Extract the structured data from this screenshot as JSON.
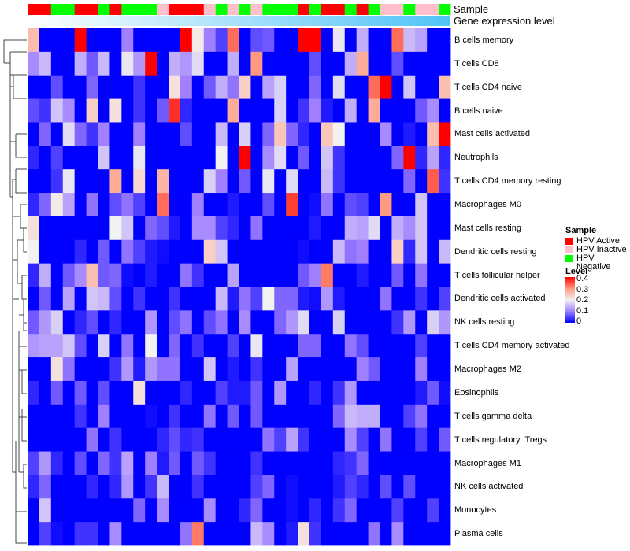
{
  "chart_data": {
    "type": "heatmap",
    "title": "",
    "annotation_labels": {
      "sample": "Sample",
      "gene_expression": "Gene expression level"
    },
    "sample_groups": [
      "HPV Active",
      "HPV Active",
      "HPV Negative",
      "HPV Negative",
      "HPV Active",
      "HPV Active",
      "HPV Negative",
      "HPV Active",
      "HPV Negative",
      "HPV Negative",
      "HPV Negative",
      "HPV Inactive",
      "HPV Active",
      "HPV Active",
      "HPV Active",
      "HPV Inactive",
      "HPV Negative",
      "HPV Inactive",
      "HPV Negative",
      "HPV Inactive",
      "HPV Negative",
      "HPV Negative",
      "HPV Negative",
      "HPV Active",
      "HPV Negative",
      "HPV Active",
      "HPV Active",
      "HPV Negative",
      "HPV Active",
      "HPV Negative",
      "HPV Inactive",
      "HPV Inactive",
      "HPV Negative",
      "HPV Inactive",
      "HPV Inactive",
      "HPV Negative"
    ],
    "rows": [
      "B cells memory",
      "T cells CD8",
      "T cells CD4 naive",
      "B cells naive",
      "Mast cells activated",
      "Neutrophils",
      "T cells CD4 memory resting",
      "Macrophages M0",
      "Mast cells resting",
      "Dendritic cells resting",
      "T cells follicular helper",
      "Dendritic cells activated",
      "NK cells resting",
      "T cells CD4 memory activated",
      "Macrophages M2",
      "Eosinophils",
      "T cells gamma delta",
      "T cells regulatory  Tregs",
      "Macrophages M1",
      "NK cells activated",
      "Monocytes",
      "Plasma cells"
    ],
    "values": [
      [
        0.26,
        0,
        0,
        0,
        0.4,
        0,
        0,
        0,
        0.1,
        0,
        0,
        0,
        0,
        0.4,
        0.21,
        0.1,
        0.05,
        0.33,
        0,
        0.06,
        0.07,
        0,
        0,
        0.4,
        0.4,
        0,
        0.19,
        0,
        0.14,
        0,
        0,
        0.33,
        0.15,
        0.13,
        0,
        0
      ],
      [
        0.11,
        0.15,
        0,
        0,
        0.14,
        0.07,
        0.15,
        0,
        0.19,
        0.12,
        0.4,
        0,
        0.14,
        0.12,
        0.18,
        0,
        0,
        0.14,
        0,
        0.3,
        0,
        0,
        0,
        0,
        0.06,
        0,
        0,
        0.14,
        0.28,
        0,
        0,
        0.06,
        0,
        0,
        0,
        0
      ],
      [
        0,
        0,
        0.06,
        0,
        0,
        0.08,
        0,
        0,
        0,
        0.04,
        0,
        0,
        0.22,
        0.1,
        0,
        0.07,
        0.14,
        0.09,
        0.24,
        0,
        0.13,
        0.17,
        0,
        0,
        0.08,
        0,
        0.18,
        0,
        0,
        0.33,
        0.4,
        0,
        0.16,
        0,
        0,
        0.26
      ],
      [
        0.06,
        0.04,
        0.16,
        0.11,
        0,
        0.24,
        0,
        0.22,
        0,
        0.04,
        0,
        0.07,
        0.37,
        0.03,
        0,
        0,
        0,
        0.28,
        0,
        0,
        0,
        0.17,
        0,
        0.04,
        0.1,
        0.02,
        0,
        0.14,
        0,
        0.28,
        0,
        0,
        0,
        0.07,
        0.11,
        0
      ],
      [
        0,
        0.08,
        0,
        0.18,
        0.08,
        0.04,
        0.1,
        0,
        0,
        0.1,
        0,
        0,
        0,
        0.06,
        0,
        0,
        0.15,
        0,
        0.17,
        0,
        0.08,
        0.25,
        0.08,
        0.03,
        0,
        0.25,
        0.2,
        0,
        0,
        0,
        0.11,
        0,
        0.02,
        0,
        0.26,
        0.4
      ],
      [
        0.03,
        0,
        0.05,
        0,
        0,
        0,
        0.16,
        0,
        0,
        0.19,
        0,
        0,
        0,
        0,
        0,
        0,
        0.2,
        0,
        0.4,
        0,
        0.11,
        0.18,
        0,
        0.07,
        0,
        0.16,
        0.04,
        0,
        0,
        0,
        0,
        0.08,
        0.4,
        0.03,
        0.13,
        0.03
      ],
      [
        0,
        0,
        0.04,
        0.19,
        0,
        0,
        0,
        0.28,
        0,
        0.23,
        0,
        0.27,
        0,
        0,
        0,
        0.17,
        0.1,
        0,
        0.07,
        0,
        0.19,
        0,
        0.18,
        0,
        0,
        0.15,
        0.04,
        0,
        0,
        0,
        0,
        0,
        0.08,
        0,
        0.34,
        0.04
      ],
      [
        0.03,
        0.08,
        0.21,
        0.13,
        0,
        0.09,
        0,
        0.06,
        0.09,
        0.05,
        0,
        0.33,
        0,
        0,
        0.1,
        0,
        0,
        0.02,
        0,
        0,
        0.06,
        0,
        0.36,
        0,
        0.01,
        0.09,
        0,
        0.06,
        0.05,
        0,
        0.3,
        0,
        0,
        0.16,
        0,
        0
      ],
      [
        0.22,
        0,
        0,
        0,
        0,
        0,
        0,
        0.2,
        0.16,
        0,
        0.08,
        0.06,
        0.02,
        0,
        0.11,
        0.11,
        0.05,
        0.03,
        0,
        0.09,
        0,
        0,
        0,
        0,
        0.02,
        0,
        0,
        0.14,
        0.13,
        0.18,
        0,
        0.14,
        0.11,
        0.16,
        0,
        0
      ],
      [
        0.2,
        0,
        0,
        0,
        0.03,
        0,
        0.07,
        0,
        0.09,
        0.05,
        0.02,
        0.01,
        0,
        0,
        0,
        0.24,
        0.16,
        0,
        0,
        0,
        0,
        0,
        0,
        0.01,
        0,
        0,
        0.15,
        0.09,
        0.1,
        0,
        0,
        0.24,
        0.03,
        0.16,
        0,
        0.15
      ],
      [
        0.03,
        0.14,
        0,
        0.07,
        0.11,
        0.26,
        0.07,
        0.08,
        0.01,
        0,
        0.02,
        0,
        0,
        0.09,
        0.04,
        0,
        0,
        0.13,
        0,
        0,
        0,
        0,
        0,
        0.07,
        0.1,
        0.32,
        0,
        0,
        0.02,
        0,
        0,
        0.07,
        0,
        0.09,
        0,
        0
      ],
      [
        0,
        0.07,
        0,
        0.13,
        0,
        0.16,
        0.15,
        0.06,
        0,
        0.04,
        0,
        0,
        0.04,
        0,
        0,
        0,
        0.15,
        0.02,
        0.09,
        0.05,
        0.2,
        0.08,
        0.08,
        0.02,
        0.01,
        0.12,
        0.02,
        0,
        0,
        0,
        0.09,
        0,
        0,
        0.04,
        0,
        0.05
      ],
      [
        0.07,
        0.12,
        0.17,
        0,
        0.03,
        0.06,
        0,
        0.03,
        0,
        0,
        0.12,
        0,
        0.06,
        0.09,
        0,
        0.06,
        0.09,
        0,
        0.11,
        0,
        0,
        0.08,
        0.12,
        0.18,
        0,
        0,
        0.17,
        0,
        0,
        0,
        0,
        0.04,
        0.12,
        0,
        0.17,
        0.12
      ],
      [
        0.12,
        0.13,
        0.13,
        0.16,
        0.06,
        0,
        0.17,
        0,
        0.09,
        0,
        0.2,
        0,
        0.08,
        0,
        0.04,
        0,
        0,
        0.05,
        0,
        0.19,
        0,
        0,
        0,
        0.08,
        0.08,
        0,
        0,
        0.09,
        0.06,
        0,
        0,
        0,
        0,
        0.05,
        0,
        0
      ],
      [
        0,
        0,
        0.22,
        0.09,
        0,
        0,
        0,
        0.04,
        0.12,
        0.02,
        0.12,
        0.09,
        0.09,
        0,
        0,
        0.16,
        0,
        0.02,
        0,
        0.04,
        0,
        0,
        0.13,
        0,
        0,
        0,
        0,
        0,
        0.1,
        0.07,
        0,
        0,
        0,
        0.1,
        0,
        0
      ],
      [
        0.03,
        0,
        0.07,
        0,
        0.07,
        0,
        0.06,
        0,
        0,
        0.22,
        0,
        0,
        0,
        0.03,
        0,
        0,
        0.05,
        0.02,
        0.02,
        0.07,
        0,
        0.12,
        0,
        0,
        0.03,
        0,
        0.04,
        0.12,
        0,
        0,
        0,
        0,
        0,
        0.02,
        0.07,
        0.01
      ],
      [
        0,
        0,
        0,
        0,
        0.04,
        0,
        0.1,
        0,
        0,
        0,
        0.01,
        0,
        0.04,
        0,
        0,
        0.09,
        0,
        0.07,
        0,
        0.07,
        0,
        0,
        0,
        0,
        0,
        0,
        0.08,
        0.15,
        0.14,
        0.14,
        0,
        0,
        0.05,
        0.09,
        0,
        0
      ],
      [
        0,
        0,
        0,
        0,
        0,
        0.09,
        0,
        0.04,
        0,
        0,
        0,
        0.03,
        0.06,
        0.03,
        0.04,
        0,
        0,
        0,
        0,
        0,
        0.09,
        0.05,
        0.13,
        0.04,
        0,
        0,
        0,
        0.11,
        0.05,
        0,
        0.09,
        0,
        0,
        0.05,
        0,
        0.07
      ],
      [
        0.05,
        0.12,
        0.03,
        0,
        0.06,
        0,
        0.08,
        0.04,
        0.13,
        0,
        0.1,
        0.02,
        0.07,
        0,
        0.07,
        0.04,
        0,
        0,
        0,
        0.04,
        0,
        0,
        0,
        0,
        0,
        0,
        0.03,
        0.04,
        0.08,
        0,
        0,
        0,
        0,
        0,
        0,
        0
      ],
      [
        0.03,
        0.08,
        0,
        0,
        0,
        0.03,
        0,
        0.03,
        0.12,
        0,
        0.04,
        0.15,
        0,
        0,
        0.04,
        0,
        0,
        0,
        0,
        0.05,
        0.08,
        0,
        0.01,
        0,
        0,
        0,
        0.02,
        0.05,
        0.03,
        0,
        0.06,
        0,
        0.06,
        0,
        0,
        0
      ],
      [
        0,
        0.16,
        0,
        0,
        0,
        0,
        0,
        0,
        0,
        0.08,
        0,
        0.11,
        0,
        0,
        0,
        0.11,
        0,
        0,
        0.03,
        0.08,
        0,
        0,
        0.01,
        0,
        0.03,
        0,
        0.04,
        0.08,
        0,
        0,
        0,
        0.05,
        0,
        0,
        0.05,
        0
      ],
      [
        0,
        0.05,
        0.01,
        0,
        0.04,
        0.04,
        0,
        0.11,
        0,
        0,
        0,
        0,
        0,
        0.09,
        0.32,
        0,
        0,
        0,
        0,
        0.15,
        0.11,
        0,
        0.02,
        0.22,
        0.04,
        0,
        0,
        0,
        0,
        0.09,
        0,
        0.11,
        0,
        0,
        0,
        0
      ]
    ],
    "color_scale": {
      "min": 0,
      "max": 0.4,
      "low": "#0000ff",
      "mid": "#f2f2f2",
      "high": "#ff0000"
    },
    "legend": {
      "sample_title": "Sample",
      "sample_entries": [
        {
          "label": "HPV Active",
          "color": "#ff0000"
        },
        {
          "label": "HPV Inactive",
          "color": "#ffc0cb"
        },
        {
          "label": "HPV Negative",
          "color": "#00ff00"
        }
      ],
      "level_title": "Level",
      "level_ticks": [
        "0.4",
        "0.3",
        "0.2",
        "0.1",
        "0"
      ],
      "placement": "right"
    },
    "gene_expression_colors": {
      "low": "#ffffff",
      "high": "#4fc3f7"
    }
  }
}
